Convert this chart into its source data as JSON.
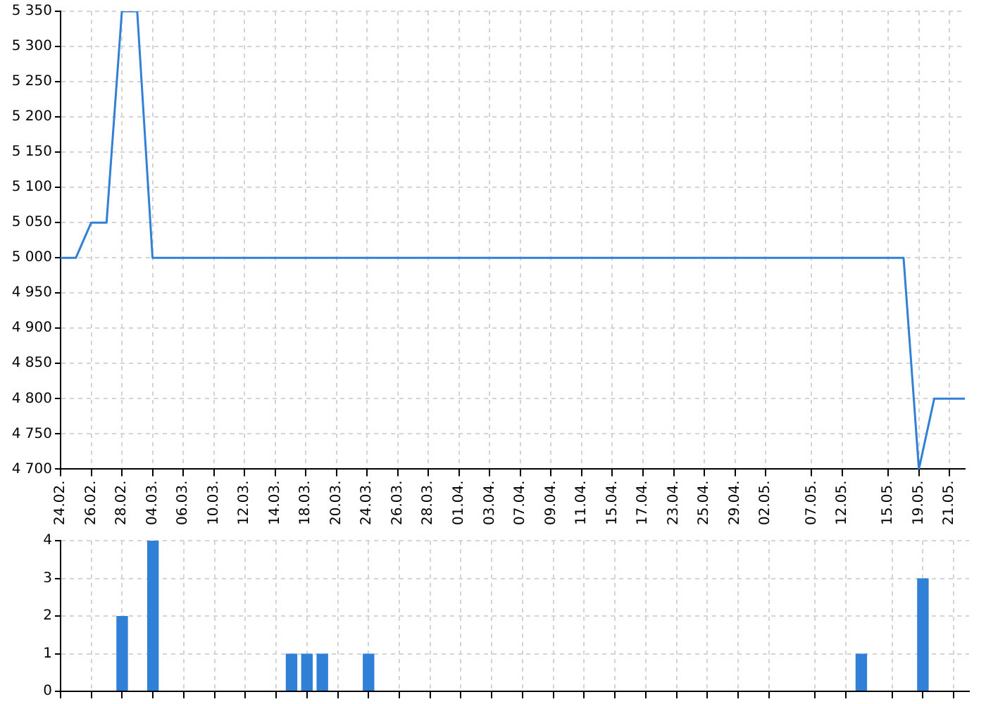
{
  "chart_data": [
    {
      "type": "line",
      "color": "#3080d8",
      "categories": [
        "24.02.",
        null,
        "26.02.",
        null,
        "28.02.",
        null,
        "04.03.",
        null,
        "06.03.",
        null,
        "10.03.",
        null,
        "12.03.",
        null,
        "14.03.",
        null,
        "18.03.",
        null,
        "20.03.",
        null,
        "24.03.",
        null,
        "26.03.",
        null,
        "28.03.",
        null,
        "01.04.",
        null,
        "03.04.",
        null,
        "07.04.",
        null,
        "09.04.",
        null,
        "11.04.",
        null,
        "15.04.",
        null,
        "17.04.",
        null,
        "23.04.",
        null,
        "25.04.",
        null,
        "29.04.",
        null,
        "02.05.",
        null,
        null,
        "07.05.",
        null,
        "12.05.",
        null,
        null,
        "15.05.",
        null,
        "19.05.",
        null,
        "21.05.",
        null
      ],
      "values": [
        5000,
        5000,
        5050,
        5050,
        5350,
        5350,
        5000,
        5000,
        5000,
        5000,
        5000,
        5000,
        5000,
        5000,
        5000,
        5000,
        5000,
        5000,
        5000,
        5000,
        5000,
        5000,
        5000,
        5000,
        5000,
        5000,
        5000,
        5000,
        5000,
        5000,
        5000,
        5000,
        5000,
        5000,
        5000,
        5000,
        5000,
        5000,
        5000,
        5000,
        5000,
        5000,
        5000,
        5000,
        5000,
        5000,
        5000,
        5000,
        5000,
        5000,
        5000,
        5000,
        5000,
        5000,
        5000,
        5000,
        4700,
        4800,
        4800,
        4800
      ],
      "ylim": [
        4700,
        5350
      ],
      "yticks": [
        {
          "value": 4700,
          "label": "4 700"
        },
        {
          "value": 4750,
          "label": "4 750"
        },
        {
          "value": 4800,
          "label": "4 800"
        },
        {
          "value": 4850,
          "label": "4 850"
        },
        {
          "value": 4900,
          "label": "4 900"
        },
        {
          "value": 4950,
          "label": "4 950"
        },
        {
          "value": 5000,
          "label": "5 000"
        },
        {
          "value": 5050,
          "label": "5 050"
        },
        {
          "value": 5100,
          "label": "5 100"
        },
        {
          "value": 5150,
          "label": "5 150"
        },
        {
          "value": 5200,
          "label": "5 200"
        },
        {
          "value": 5250,
          "label": "5 250"
        },
        {
          "value": 5300,
          "label": "5 300"
        },
        {
          "value": 5350,
          "label": "5 350"
        }
      ],
      "grid": true,
      "marker": "none",
      "line_style": "solid"
    },
    {
      "type": "bar",
      "color": "#3080d8",
      "categories": [
        "24.02.",
        null,
        "26.02.",
        null,
        "28.02.",
        null,
        "04.03.",
        null,
        "06.03.",
        null,
        "10.03.",
        null,
        "12.03.",
        null,
        "14.03.",
        null,
        "18.03.",
        null,
        "20.03.",
        null,
        "24.03.",
        null,
        "26.03.",
        null,
        "28.03.",
        null,
        "01.04.",
        null,
        "03.04.",
        null,
        "07.04.",
        null,
        "09.04.",
        null,
        "11.04.",
        null,
        "15.04.",
        null,
        "17.04.",
        null,
        "23.04.",
        null,
        "25.04.",
        null,
        "29.04.",
        null,
        "02.05.",
        null,
        null,
        "07.05.",
        null,
        "12.05.",
        null,
        null,
        "15.05.",
        null,
        "19.05.",
        null,
        "21.05.",
        null
      ],
      "values": [
        0,
        0,
        0,
        0,
        2,
        0,
        4,
        0,
        0,
        0,
        0,
        0,
        0,
        0,
        0,
        1,
        1,
        1,
        0,
        0,
        1,
        0,
        0,
        0,
        0,
        0,
        0,
        0,
        0,
        0,
        0,
        0,
        0,
        0,
        0,
        0,
        0,
        0,
        0,
        0,
        0,
        0,
        0,
        0,
        0,
        0,
        0,
        0,
        0,
        0,
        0,
        0,
        1,
        0,
        0,
        0,
        3,
        0,
        0,
        0
      ],
      "ylim": [
        0,
        4
      ],
      "yticks": [
        0,
        1,
        2,
        3,
        4
      ],
      "grid": true,
      "tick_labels": "y"
    }
  ]
}
